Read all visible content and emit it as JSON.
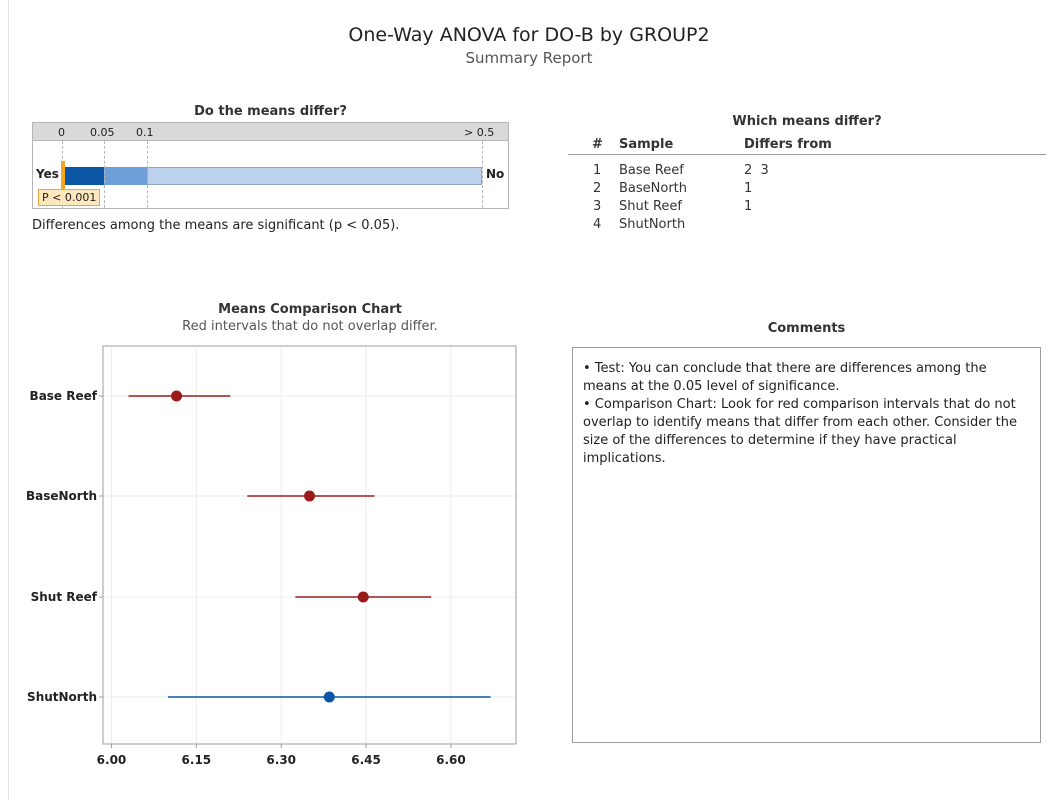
{
  "report": {
    "title": "One-Way ANOVA for DO-B by GROUP2",
    "subtitle": "Summary Report"
  },
  "pvalue_section": {
    "title": "Do the means differ?",
    "scale_labels": [
      "0",
      "0.05",
      "0.1",
      "> 0.5"
    ],
    "yes_label": "Yes",
    "no_label": "No",
    "p_label": "P < 0.001",
    "conclusion": "Differences among the means are significant (p < 0.05).",
    "colors": {
      "dark": "#0b56a4",
      "mid": "#6f9fd8",
      "light": "#bcd1ec",
      "marker": "#f5a623"
    }
  },
  "differ_section": {
    "title": "Which means differ?",
    "headers": [
      "#",
      "Sample",
      "Differs from"
    ],
    "rows": [
      {
        "num": "1",
        "sample": "Base Reef",
        "differs": "2  3"
      },
      {
        "num": "2",
        "sample": "BaseNorth",
        "differs": "1"
      },
      {
        "num": "3",
        "sample": "Shut Reef",
        "differs": "1"
      },
      {
        "num": "4",
        "sample": "ShutNorth",
        "differs": ""
      }
    ]
  },
  "chart_data": {
    "type": "scatter",
    "title": "Means Comparison Chart",
    "subtitle": "Red intervals that do not overlap differ.",
    "categories": [
      "Base Reef",
      "BaseNorth",
      "Shut Reef",
      "ShutNorth"
    ],
    "means": [
      6.115,
      6.35,
      6.445,
      6.385
    ],
    "lower": [
      6.03,
      6.24,
      6.325,
      6.1
    ],
    "upper": [
      6.21,
      6.465,
      6.565,
      6.67
    ],
    "point_colors": [
      "#9b1b1b",
      "#9b1b1b",
      "#9b1b1b",
      "#0b56a4"
    ],
    "xlim": [
      5.985,
      6.715
    ],
    "xticks": [
      "6.00",
      "6.15",
      "6.30",
      "6.45",
      "6.60"
    ],
    "grid": true
  },
  "comments": {
    "title": "Comments",
    "lines": [
      "• Test: You can conclude that there are differences among the means at the 0.05 level of significance.",
      "• Comparison Chart: Look for red comparison intervals that do not overlap to identify means that differ from each other. Consider the size of the differences to determine if they have practical implications."
    ]
  }
}
